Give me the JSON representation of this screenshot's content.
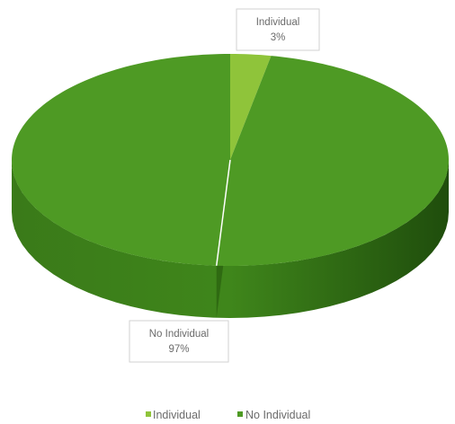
{
  "chart_data": {
    "type": "pie",
    "style": "3d",
    "categories": [
      "Individual",
      "No Individual"
    ],
    "values": [
      3,
      97
    ],
    "value_unit": "%",
    "data_labels": [
      {
        "category": "Individual",
        "value": "3%"
      },
      {
        "category": "No Individual",
        "value": "97%"
      }
    ],
    "colors": [
      "#8fc43a",
      "#4e9a24"
    ],
    "legend": {
      "position": "bottom",
      "entries": [
        "Individual",
        "No Individual"
      ]
    },
    "title": ""
  }
}
